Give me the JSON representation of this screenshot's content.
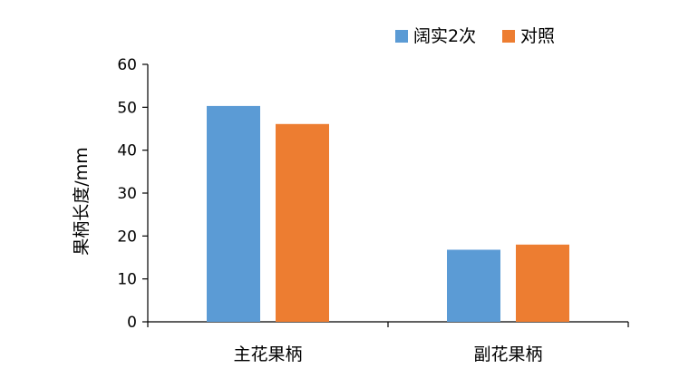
{
  "chart_data": {
    "type": "bar",
    "categories": [
      "主花果柄",
      "副花果柄"
    ],
    "series": [
      {
        "name": "阔实2次",
        "values": [
          50.3,
          16.8
        ],
        "color": "#5B9BD5"
      },
      {
        "name": "对照",
        "values": [
          46.1,
          18.0
        ],
        "color": "#ED7D31"
      }
    ],
    "title": "",
    "xlabel": "",
    "ylabel": "果柄长度/mm",
    "ylim": [
      0,
      60
    ],
    "yticks": [
      0,
      10,
      20,
      30,
      40,
      50,
      60
    ],
    "grid": false,
    "legend": "top-right"
  }
}
